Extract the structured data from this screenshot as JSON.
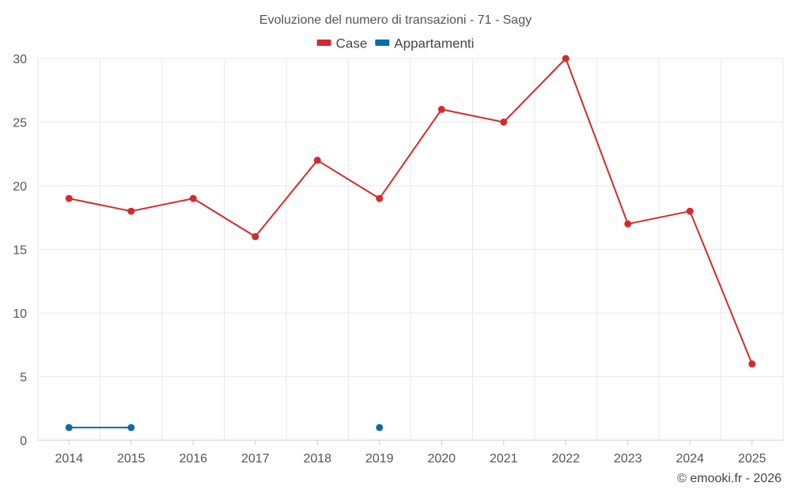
{
  "chart_data": {
    "type": "line",
    "title": "Evoluzione del numero di transazioni - 71 - Sagy",
    "categories": [
      "2014",
      "2015",
      "2016",
      "2017",
      "2018",
      "2019",
      "2020",
      "2021",
      "2022",
      "2023",
      "2024",
      "2025"
    ],
    "series": [
      {
        "name": "Case",
        "color": "#d32b2b",
        "values": [
          19,
          18,
          19,
          16,
          22,
          19,
          26,
          25,
          30,
          17,
          18,
          6
        ]
      },
      {
        "name": "Appartamenti",
        "color": "#0e6aa6",
        "values": [
          1,
          1,
          null,
          null,
          null,
          1,
          null,
          null,
          null,
          null,
          null,
          null
        ]
      }
    ],
    "ylim": [
      0,
      30
    ],
    "yticks": [
      0,
      5,
      10,
      15,
      20,
      25,
      30
    ],
    "xlabel": "",
    "ylabel": "",
    "grid": true,
    "legend_position": "top-center"
  },
  "credit": "© emooki.fr - 2026"
}
